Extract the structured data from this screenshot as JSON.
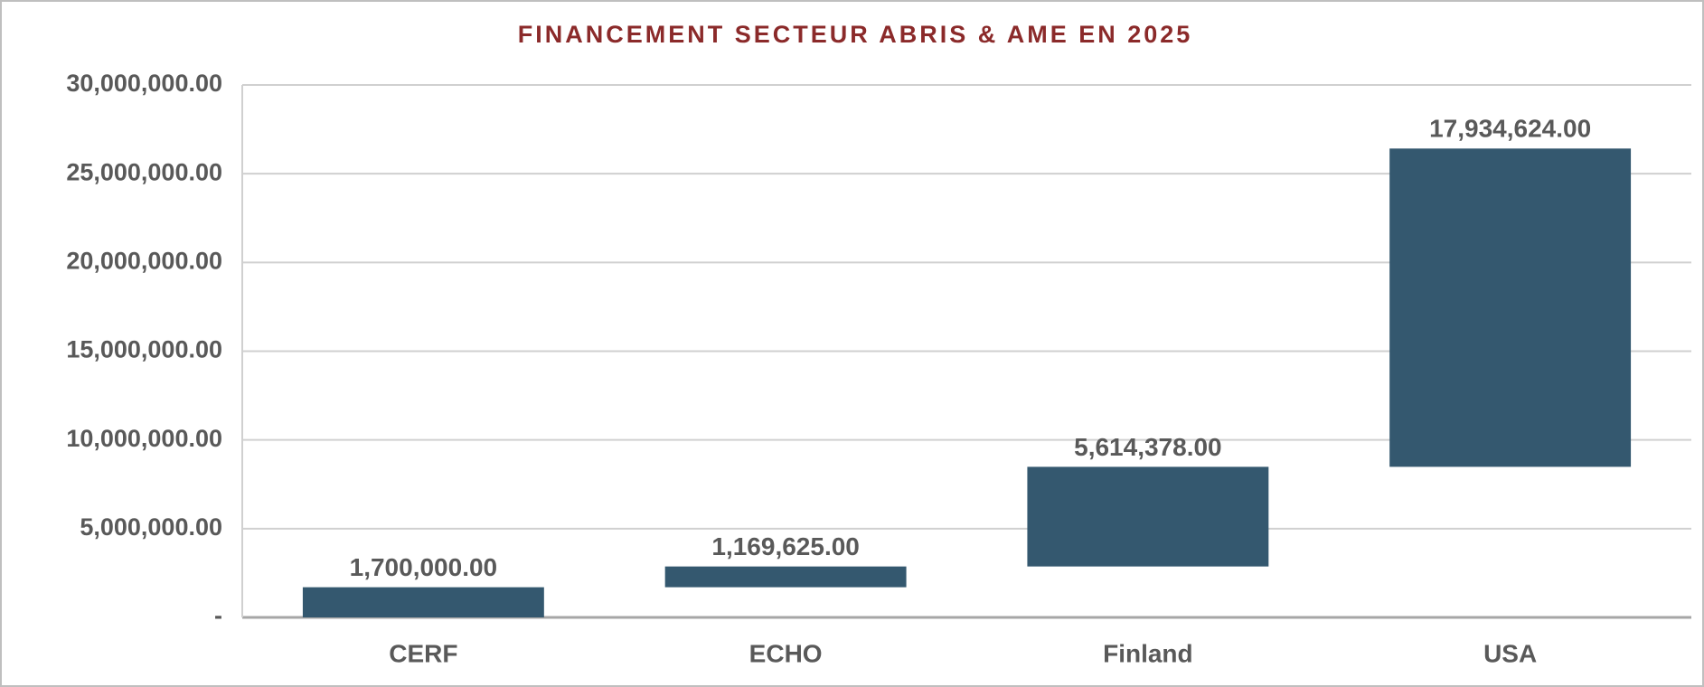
{
  "chart_data": {
    "type": "waterfall",
    "title": "FINANCEMENT SECTEUR ABRIS & AME EN 2025",
    "categories": [
      "CERF",
      "ECHO",
      "Finland",
      "USA"
    ],
    "values": [
      1700000,
      1169625,
      5614378,
      17934624
    ],
    "value_labels": [
      "1,700,000.00",
      "1,169,625.00",
      "5,614,378.00",
      "17,934,624.00"
    ],
    "color": "#34586f",
    "ylim": [
      0,
      30000000
    ],
    "yticks": [
      {
        "value": 0,
        "label": "-"
      },
      {
        "value": 5000000,
        "label": "5,000,000.00"
      },
      {
        "value": 10000000,
        "label": "10,000,000.00"
      },
      {
        "value": 15000000,
        "label": "15,000,000.00"
      },
      {
        "value": 20000000,
        "label": "20,000,000.00"
      },
      {
        "value": 25000000,
        "label": "25,000,000.00"
      },
      {
        "value": 30000000,
        "label": "30,000,000.00"
      }
    ],
    "grid": true
  }
}
